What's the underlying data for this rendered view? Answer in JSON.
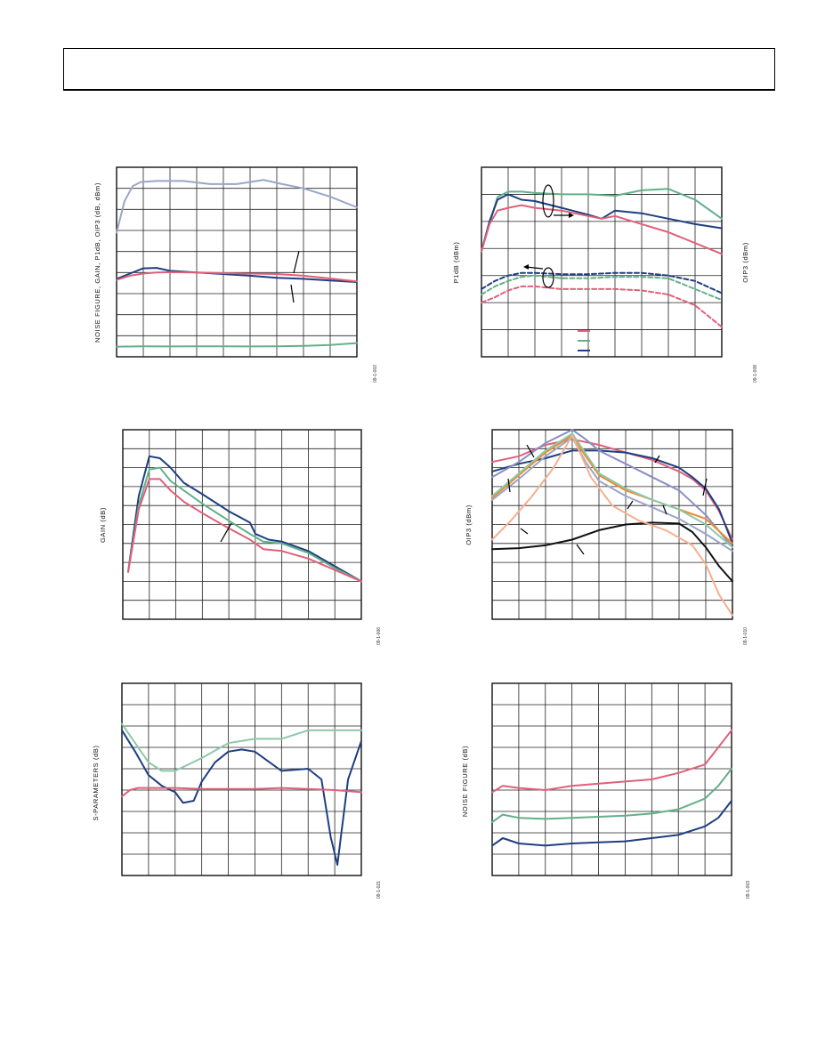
{
  "page": {
    "header_text": ""
  },
  "colors": {
    "red": "#e0607a",
    "green": "#62b08a",
    "navy": "#1e3f80",
    "lavender": "#9aa6c8",
    "black": "#111111",
    "orange": "#f08a30",
    "peach": "#f4b090",
    "purple": "#8a8ec4",
    "seafoam": "#8cc8a8"
  },
  "figures": [
    {
      "id": "fig1",
      "ylabel": "NOISE FIGURE, GAIN, P1dB, OIP3 (dB, dBm)",
      "fig_number": "09-1-002"
    },
    {
      "id": "fig2",
      "ylabel_left": "P1dB (dBm)",
      "ylabel_right": "OIP3 (dBm)",
      "fig_number": "09-1-008"
    },
    {
      "id": "fig3",
      "ylabel": "GAIN (dB)",
      "fig_number": "09-1-006"
    },
    {
      "id": "fig4",
      "ylabel": "OIP3 (dBm)",
      "fig_number": "09-1-010"
    },
    {
      "id": "fig5",
      "ylabel": "S-PARAMETERS (dB)",
      "fig_number": "09-1-021"
    },
    {
      "id": "fig6",
      "ylabel": "NOISE FIGURE (dB)",
      "fig_number": "09-1-003"
    }
  ],
  "chart_data": [
    {
      "type": "line",
      "id": "fig1",
      "ylabel": "NOISE FIGURE, GAIN, P1dB, OIP3 (dB, dBm)",
      "xlim": [
        0,
        9
      ],
      "ylim": [
        0,
        9
      ],
      "grid": true,
      "series": [
        {
          "color": "lavender",
          "x": [
            0,
            0.3,
            0.6,
            0.9,
            1.5,
            2.5,
            3.5,
            4.5,
            5.5,
            6.2,
            7,
            8,
            9
          ],
          "y": [
            5.9,
            7.4,
            8.1,
            8.3,
            8.35,
            8.35,
            8.2,
            8.2,
            8.4,
            8.2,
            8,
            7.6,
            7.1
          ]
        },
        {
          "color": "navy",
          "x": [
            0,
            0.5,
            1,
            1.5,
            2,
            3,
            4,
            5,
            6,
            7,
            8,
            9
          ],
          "y": [
            3.7,
            3.95,
            4.2,
            4.22,
            4.08,
            4.0,
            3.93,
            3.85,
            3.75,
            3.7,
            3.62,
            3.55
          ]
        },
        {
          "color": "red",
          "x": [
            0,
            0.5,
            1,
            1.5,
            2,
            3,
            4,
            5,
            6,
            7,
            8,
            9
          ],
          "y": [
            3.65,
            3.85,
            3.95,
            4.0,
            4.02,
            4.0,
            3.97,
            3.95,
            3.93,
            3.85,
            3.72,
            3.58
          ]
        },
        {
          "color": "green",
          "x": [
            0,
            1,
            2,
            3,
            4,
            5,
            6,
            7,
            8,
            9
          ],
          "y": [
            0.48,
            0.5,
            0.49,
            0.5,
            0.5,
            0.49,
            0.5,
            0.52,
            0.56,
            0.65
          ]
        }
      ]
    },
    {
      "type": "line",
      "id": "fig2",
      "ylabel": "P1dB (dBm)",
      "y2label": "OIP3 (dBm)",
      "xlim": [
        0,
        9
      ],
      "ylim": [
        0,
        7
      ],
      "grid": true,
      "series": [
        {
          "color": "green",
          "dashed": false,
          "x": [
            0,
            0.3,
            0.6,
            1,
            1.5,
            2,
            3,
            4,
            5,
            6,
            7,
            8,
            9
          ],
          "y": [
            3.9,
            4.9,
            5.9,
            6.1,
            6.1,
            6.05,
            6.0,
            6.0,
            5.95,
            6.15,
            6.2,
            5.8,
            5.1
          ]
        },
        {
          "color": "navy",
          "dashed": false,
          "x": [
            0,
            0.3,
            0.6,
            1,
            1.5,
            2,
            3,
            4,
            4.5,
            5,
            6,
            7,
            8,
            9
          ],
          "y": [
            3.9,
            5.0,
            5.8,
            6.0,
            5.8,
            5.75,
            5.5,
            5.25,
            5.1,
            5.4,
            5.3,
            5.1,
            4.9,
            4.75
          ]
        },
        {
          "color": "red",
          "dashed": false,
          "x": [
            0,
            0.3,
            0.6,
            1,
            1.5,
            2,
            3,
            4,
            4.5,
            5,
            6,
            7,
            8,
            9
          ],
          "y": [
            3.9,
            4.9,
            5.4,
            5.5,
            5.6,
            5.5,
            5.4,
            5.2,
            5.1,
            5.2,
            4.9,
            4.6,
            4.2,
            3.8
          ]
        },
        {
          "color": "navy",
          "dashed": true,
          "x": [
            0,
            0.5,
            1,
            1.5,
            2,
            3,
            4,
            5,
            6,
            7,
            8,
            9
          ],
          "y": [
            2.5,
            2.8,
            3.0,
            3.1,
            3.1,
            3.05,
            3.05,
            3.1,
            3.1,
            3.0,
            2.8,
            2.35
          ]
        },
        {
          "color": "green",
          "dashed": true,
          "x": [
            0,
            0.5,
            1,
            1.5,
            2,
            3,
            4,
            5,
            6,
            7,
            8,
            9
          ],
          "y": [
            2.3,
            2.6,
            2.8,
            2.95,
            3.0,
            2.9,
            2.9,
            2.95,
            2.95,
            2.9,
            2.5,
            2.1
          ]
        },
        {
          "color": "red",
          "dashed": true,
          "x": [
            0,
            0.5,
            1,
            1.5,
            2,
            3,
            4,
            5,
            6,
            7,
            8,
            9
          ],
          "y": [
            2.0,
            2.2,
            2.45,
            2.6,
            2.6,
            2.5,
            2.5,
            2.5,
            2.45,
            2.3,
            1.9,
            1.1
          ]
        }
      ]
    },
    {
      "type": "line",
      "id": "fig3",
      "ylabel": "GAIN (dB)",
      "xlim": [
        0,
        9
      ],
      "ylim": [
        0,
        10
      ],
      "grid": true,
      "series": [
        {
          "color": "navy",
          "x": [
            0.2,
            0.6,
            1,
            1.4,
            1.8,
            2.3,
            3,
            4,
            4.8,
            5,
            5.5,
            6,
            7,
            8,
            9
          ],
          "y": [
            2.5,
            6.5,
            8.6,
            8.5,
            8.0,
            7.2,
            6.6,
            5.7,
            5.1,
            4.5,
            4.2,
            4.1,
            3.6,
            2.8,
            2.0
          ]
        },
        {
          "color": "green",
          "x": [
            0.2,
            0.6,
            1,
            1.4,
            1.8,
            2.3,
            3,
            4,
            4.8,
            5.3,
            6,
            7,
            8,
            9
          ],
          "y": [
            2.5,
            6.0,
            7.9,
            8.0,
            7.3,
            6.8,
            6.1,
            5.2,
            4.5,
            4.1,
            4.0,
            3.5,
            2.7,
            2.0
          ]
        },
        {
          "color": "red",
          "x": [
            0.2,
            0.6,
            1,
            1.4,
            1.8,
            2.3,
            3,
            4,
            4.8,
            5.3,
            6,
            7,
            8,
            9
          ],
          "y": [
            2.5,
            5.8,
            7.4,
            7.4,
            6.8,
            6.2,
            5.6,
            4.8,
            4.2,
            3.7,
            3.6,
            3.2,
            2.6,
            2.0
          ]
        }
      ]
    },
    {
      "type": "line",
      "id": "fig4",
      "ylabel": "OIP3 (dBm)",
      "xlim": [
        0,
        9
      ],
      "ylim": [
        0,
        10
      ],
      "grid": true,
      "series": [
        {
          "color": "red",
          "x": [
            0,
            1,
            2,
            3,
            4,
            5,
            6,
            7,
            7.5,
            8,
            8.5,
            9
          ],
          "y": [
            8.3,
            8.6,
            9.2,
            9.5,
            9.2,
            8.8,
            8.4,
            7.8,
            7.4,
            6.8,
            5.7,
            4.2
          ]
        },
        {
          "color": "navy",
          "x": [
            0,
            1,
            2,
            3,
            4,
            5,
            6,
            7,
            7.5,
            8,
            8.5,
            9
          ],
          "y": [
            7.8,
            8.2,
            8.5,
            8.9,
            8.9,
            8.8,
            8.5,
            8.0,
            7.5,
            6.9,
            5.8,
            4.0
          ]
        },
        {
          "color": "purple",
          "x": [
            0,
            1,
            2,
            3,
            3.5,
            4,
            5,
            6,
            7,
            8,
            9
          ],
          "y": [
            7.5,
            8.3,
            9.3,
            10.0,
            9.5,
            8.9,
            8.2,
            7.5,
            6.8,
            5.5,
            3.8
          ]
        },
        {
          "color": "orange",
          "x": [
            0,
            1,
            2,
            3,
            3.5,
            4,
            5,
            6,
            7,
            8,
            9
          ],
          "y": [
            6.4,
            7.6,
            8.8,
            9.7,
            8.6,
            7.6,
            6.8,
            6.3,
            5.8,
            5.3,
            4.0
          ]
        },
        {
          "color": "seafoam",
          "x": [
            0,
            1,
            2,
            3,
            4,
            5,
            6,
            7,
            8,
            9
          ],
          "y": [
            6.5,
            7.7,
            8.9,
            9.8,
            7.7,
            6.9,
            6.3,
            5.8,
            5.0,
            3.8
          ]
        },
        {
          "color": "lavender",
          "x": [
            0,
            1,
            2,
            3,
            3.5,
            4,
            5,
            6,
            7,
            8,
            9
          ],
          "y": [
            6.3,
            7.4,
            8.6,
            9.6,
            8.3,
            7.3,
            6.5,
            5.9,
            5.3,
            4.5,
            3.6
          ]
        },
        {
          "color": "black",
          "x": [
            0,
            1,
            2,
            3,
            4,
            5,
            6,
            7,
            7.5,
            8,
            8.5,
            9
          ],
          "y": [
            3.7,
            3.75,
            3.9,
            4.2,
            4.7,
            5.0,
            5.1,
            5.05,
            4.6,
            3.8,
            2.8,
            2.0
          ]
        },
        {
          "color": "peach",
          "x": [
            0,
            0.7,
            1.5,
            2.3,
            3,
            3.7,
            4.5,
            5.5,
            6.5,
            7.5,
            8,
            8.5,
            9
          ],
          "y": [
            4.2,
            5.2,
            6.5,
            8.0,
            9.7,
            7.5,
            6.0,
            5.2,
            4.7,
            3.9,
            2.9,
            1.3,
            0.2
          ]
        }
      ]
    },
    {
      "type": "line",
      "id": "fig5",
      "ylabel": "S-PARAMETERS (dB)",
      "xlim": [
        0,
        9
      ],
      "ylim": [
        0,
        9
      ],
      "grid": true,
      "series": [
        {
          "color": "seafoam",
          "x": [
            0,
            0.5,
            1,
            1.5,
            2,
            3,
            4,
            5,
            6,
            7,
            8,
            9
          ],
          "y": [
            7.1,
            6.2,
            5.3,
            4.9,
            4.9,
            5.5,
            6.2,
            6.4,
            6.4,
            6.8,
            6.8,
            6.8
          ]
        },
        {
          "color": "navy",
          "x": [
            0,
            0.5,
            1,
            1.5,
            2,
            2.3,
            2.7,
            3,
            3.5,
            4,
            4.5,
            5,
            6,
            7,
            7.5,
            7.85,
            8.1,
            8.5,
            9
          ],
          "y": [
            6.8,
            5.8,
            4.7,
            4.2,
            3.9,
            3.4,
            3.5,
            4.4,
            5.3,
            5.8,
            5.9,
            5.8,
            4.9,
            5.0,
            4.5,
            1.8,
            0.5,
            4.5,
            6.3
          ]
        },
        {
          "color": "red",
          "x": [
            0,
            0.3,
            0.6,
            1,
            2,
            3,
            4,
            5,
            6,
            7,
            8,
            9
          ],
          "y": [
            3.7,
            4.0,
            4.1,
            4.1,
            4.1,
            4.05,
            4.05,
            4.05,
            4.1,
            4.05,
            4.0,
            3.9
          ]
        }
      ]
    },
    {
      "type": "line",
      "id": "fig6",
      "ylabel": "NOISE FIGURE (dB)",
      "xlim": [
        0,
        9
      ],
      "ylim": [
        0,
        9
      ],
      "grid": true,
      "series": [
        {
          "color": "red",
          "x": [
            0,
            0.4,
            1,
            2,
            3,
            4,
            5,
            6,
            7,
            8,
            8.5,
            9
          ],
          "y": [
            3.9,
            4.2,
            4.1,
            4.0,
            4.2,
            4.3,
            4.4,
            4.5,
            4.8,
            5.2,
            6.0,
            6.8
          ]
        },
        {
          "color": "green",
          "x": [
            0,
            0.4,
            1,
            2,
            3,
            4,
            5,
            6,
            7,
            8,
            8.5,
            9
          ],
          "y": [
            2.5,
            2.85,
            2.7,
            2.65,
            2.7,
            2.75,
            2.8,
            2.9,
            3.1,
            3.6,
            4.2,
            5.0
          ]
        },
        {
          "color": "navy",
          "x": [
            0,
            0.4,
            1,
            2,
            3,
            4,
            5,
            6,
            7,
            8,
            8.5,
            9
          ],
          "y": [
            1.4,
            1.75,
            1.5,
            1.4,
            1.5,
            1.55,
            1.6,
            1.75,
            1.9,
            2.3,
            2.7,
            3.5
          ]
        }
      ]
    }
  ]
}
